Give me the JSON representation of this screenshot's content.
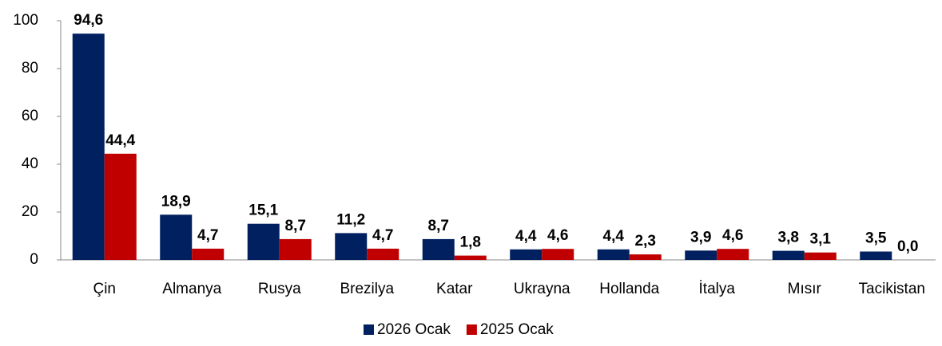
{
  "chart_data": {
    "type": "bar",
    "categories": [
      "Çin",
      "Almanya",
      "Rusya",
      "Brezilya",
      "Katar",
      "Ukrayna",
      "Hollanda",
      "İtalya",
      "Mısır",
      "Tacikistan"
    ],
    "series": [
      {
        "name": "2026 Ocak",
        "color": "#002060",
        "values": [
          94.6,
          18.9,
          15.1,
          11.2,
          8.7,
          4.4,
          4.4,
          3.9,
          3.8,
          3.5
        ],
        "value_labels": [
          "94,6",
          "18,9",
          "15,1",
          "11,2",
          "8,7",
          "4,4",
          "4,4",
          "3,9",
          "3,8",
          "3,5"
        ]
      },
      {
        "name": "2025 Ocak",
        "color": "#c00000",
        "values": [
          44.4,
          4.7,
          8.7,
          4.7,
          1.8,
          4.6,
          2.3,
          4.6,
          3.1,
          0.0
        ],
        "value_labels": [
          "44,4",
          "4,7",
          "8,7",
          "4,7",
          "1,8",
          "4,6",
          "2,3",
          "4,6",
          "3,1",
          "0,0"
        ]
      }
    ],
    "ylim": [
      0,
      100
    ],
    "yticks": [
      0,
      20,
      40,
      60,
      80,
      100
    ],
    "grid": false,
    "legend": "bottom"
  }
}
